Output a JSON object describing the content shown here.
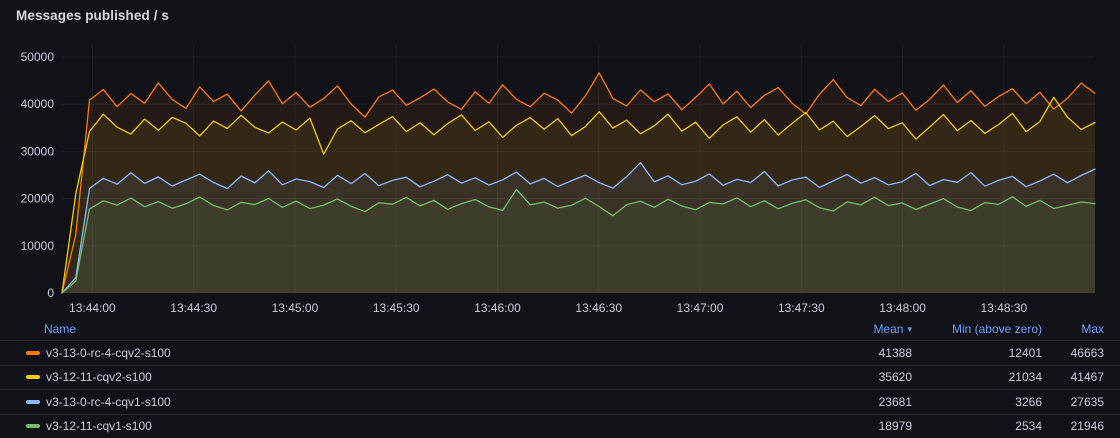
{
  "panel": {
    "title": "Messages published / s"
  },
  "colors": {
    "background": "#111217",
    "title_text": "#D8D9DF",
    "axis_text": "#CCCCDC",
    "link": "#6E9FFF",
    "grid": "rgba(204,204,220,0.07)"
  },
  "legend": {
    "columns": {
      "name": "Name",
      "mean": "Mean",
      "min": "Min (above zero)",
      "max": "Max"
    },
    "sort_icon": "▾",
    "sorted_by": "Mean"
  },
  "chart_data": {
    "type": "line",
    "title": "Messages published / s",
    "grid": true,
    "legend_position": "bottom-table",
    "fill_opacity": 0.08,
    "y_axis": {
      "ticks": [
        0,
        10000,
        20000,
        30000,
        40000,
        50000
      ],
      "max": 50000,
      "min": 0
    },
    "x_axis": {
      "tick_labels": [
        "13:44:00",
        "13:44:30",
        "13:45:00",
        "13:45:30",
        "13:46:00",
        "13:46:30",
        "13:47:00",
        "13:47:30",
        "13:48:00",
        "13:48:30"
      ],
      "first_tick_offset_s": 9,
      "tick_interval_s": 30,
      "domain_s": 306
    },
    "series": [
      {
        "name": "v3-13-0-rc-4-cqv2-s100",
        "color": "#FF780A",
        "mean": 41388,
        "min_above_zero": 12401,
        "max": 46663,
        "values": [
          0,
          12401,
          40872,
          43120,
          39488,
          42260,
          40190,
          44510,
          41020,
          39110,
          43680,
          40560,
          42110,
          38570,
          41900,
          44930,
          40110,
          42480,
          39350,
          41210,
          43890,
          40020,
          37260,
          41540,
          42980,
          39760,
          41350,
          43210,
          40480,
          38900,
          42640,
          40190,
          44120,
          41010,
          39480,
          42330,
          40870,
          38120,
          41760,
          46663,
          41230,
          39620,
          43040,
          40510,
          42210,
          38840,
          41420,
          44310,
          40060,
          42760,
          39290,
          41880,
          43520,
          40230,
          37940,
          42100,
          45210,
          41390,
          39710,
          43160,
          40580,
          42390,
          38690,
          41050,
          44040,
          40350,
          42880,
          39530,
          41630,
          43280,
          40110,
          42520,
          38960,
          41270,
          44480,
          42310
        ]
      },
      {
        "name": "v3-12-11-cqv2-s100",
        "color": "#F2CC0C",
        "mean": 35620,
        "min_above_zero": 21034,
        "max": 41467,
        "values": [
          0,
          21034,
          34210,
          37890,
          35120,
          33670,
          36840,
          34480,
          37210,
          35960,
          33280,
          36420,
          34850,
          37640,
          35110,
          33890,
          36230,
          34520,
          37050,
          29430,
          34760,
          36510,
          33940,
          35720,
          37380,
          34190,
          36060,
          33510,
          35890,
          37730,
          34420,
          36280,
          32960,
          35540,
          37160,
          34700,
          36940,
          33350,
          35260,
          38410,
          34960,
          36620,
          33750,
          35430,
          37910,
          34280,
          36180,
          32780,
          35610,
          37340,
          34080,
          36740,
          33470,
          35910,
          38240,
          34560,
          36390,
          33160,
          35280,
          37580,
          34830,
          36070,
          32610,
          35160,
          37820,
          34390,
          36550,
          33820,
          35690,
          38060,
          34170,
          36310,
          41467,
          37250,
          34640,
          36120
        ]
      },
      {
        "name": "v3-13-0-rc-4-cqv1-s100",
        "color": "#8AB8FF",
        "mean": 23681,
        "min_above_zero": 3266,
        "max": 27635,
        "values": [
          0,
          3266,
          22140,
          24310,
          23050,
          25480,
          23210,
          24590,
          22680,
          23950,
          25170,
          23440,
          22110,
          24780,
          23320,
          25890,
          22930,
          24160,
          23610,
          22350,
          24940,
          23180,
          25310,
          22740,
          23870,
          24520,
          22490,
          23690,
          25060,
          23290,
          24410,
          22860,
          23980,
          25620,
          23110,
          24270,
          22570,
          23810,
          24970,
          23370,
          22230,
          24680,
          27635,
          23530,
          24840,
          22950,
          23660,
          25230,
          22810,
          24090,
          23420,
          25740,
          22660,
          23940,
          24560,
          22380,
          23750,
          25120,
          23260,
          24450,
          22910,
          23590,
          25350,
          22780,
          24020,
          23450,
          25510,
          22630,
          23880,
          24700,
          22520,
          23720,
          25180,
          23340,
          24910,
          26240
        ]
      },
      {
        "name": "v3-12-11-cqv1-s100",
        "color": "#73BF69",
        "mean": 18979,
        "min_above_zero": 2534,
        "max": 21946,
        "values": [
          0,
          2534,
          17820,
          19540,
          18630,
          20110,
          18280,
          19370,
          17960,
          18890,
          20340,
          18540,
          17610,
          19220,
          18760,
          20020,
          18150,
          19480,
          17890,
          18620,
          19930,
          18370,
          17240,
          19110,
          18810,
          20250,
          18460,
          19650,
          17730,
          18950,
          19810,
          18240,
          17510,
          21946,
          18680,
          19260,
          17980,
          18570,
          20080,
          18330,
          16360,
          18720,
          19420,
          18160,
          19870,
          18440,
          17650,
          19190,
          18850,
          20160,
          18290,
          19560,
          17830,
          18980,
          19740,
          18080,
          17380,
          19310,
          18690,
          20290,
          18510,
          19080,
          17700,
          18860,
          19990,
          18230,
          17460,
          19150,
          18770,
          20410,
          18350,
          19630,
          17910,
          18580,
          19280,
          18940
        ]
      }
    ]
  }
}
